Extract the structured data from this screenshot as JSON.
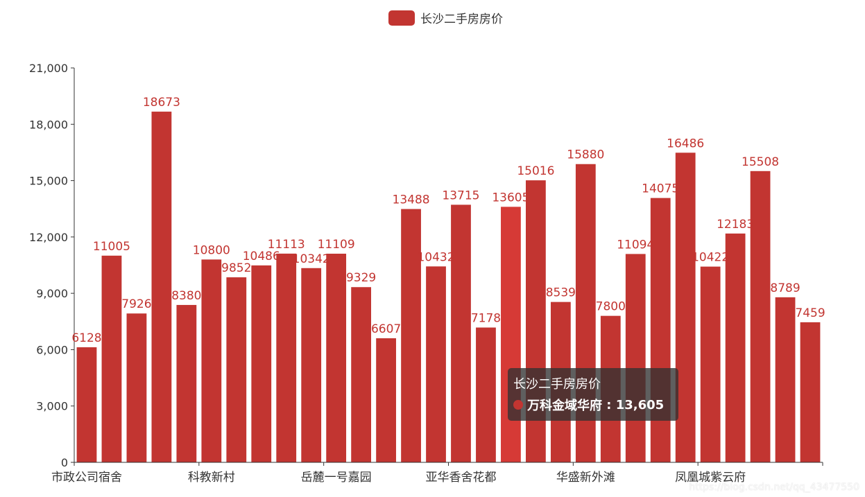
{
  "legend": {
    "label": "长沙二手房房价"
  },
  "tooltip": {
    "title": "长沙二手房房价",
    "item": "万科金域华府",
    "value": "13,605"
  },
  "watermark": "https://blog.csdn.net/qq_43477550",
  "colors": {
    "bar": "#c23531",
    "bar_emphasis": "#d63a36",
    "axis": "#333333"
  },
  "chart_data": {
    "type": "bar",
    "series": [
      {
        "name": "长沙二手房房价",
        "values": [
          6128,
          11005,
          7926,
          18673,
          8380,
          10800,
          9852,
          10486,
          11113,
          10342,
          11109,
          9329,
          6607,
          13488,
          10432,
          13715,
          7178,
          13605,
          15016,
          8539,
          15880,
          7800,
          11094,
          14075,
          16486,
          10422,
          12183,
          15508,
          8789,
          7459
        ]
      }
    ],
    "x_tick_labels": [
      {
        "index": 0,
        "label": "市政公司宿舍"
      },
      {
        "index": 5,
        "label": "科教新村"
      },
      {
        "index": 10,
        "label": "岳麓一号嘉园"
      },
      {
        "index": 15,
        "label": "亚华香舍花都"
      },
      {
        "index": 20,
        "label": "华盛新外滩"
      },
      {
        "index": 25,
        "label": "凤凰城紫云府"
      }
    ],
    "y_ticks": [
      "0",
      "3,000",
      "6,000",
      "9,000",
      "12,000",
      "15,000",
      "18,000",
      "21,000"
    ],
    "ylim": [
      0,
      21000
    ],
    "highlighted_index": 17,
    "legend_position": "top-center"
  }
}
